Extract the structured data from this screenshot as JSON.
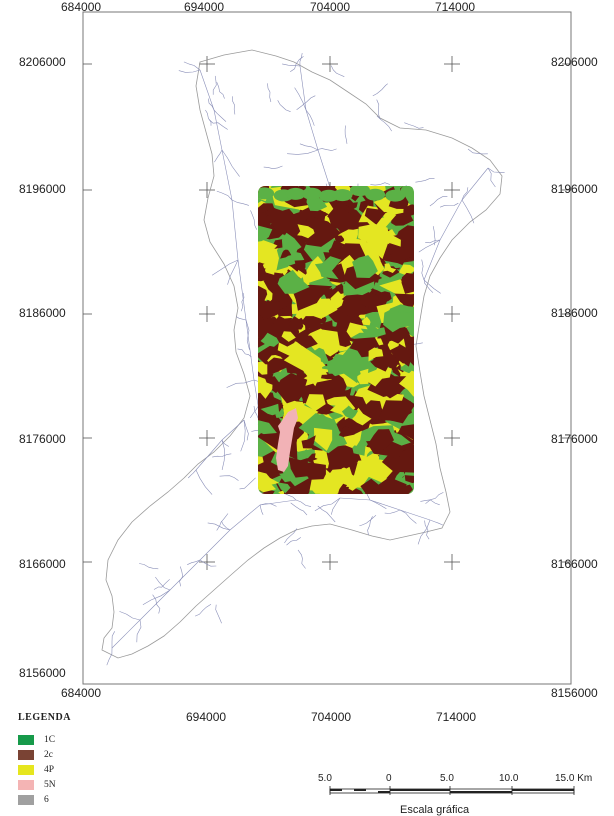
{
  "map": {
    "frame_color": "#777777",
    "x_labels_top": [
      "684000",
      "694000",
      "704000",
      "714000"
    ],
    "x_labels_bottom": [
      "684000",
      "694000",
      "704000",
      "714000"
    ],
    "y_labels_left": [
      "8206000",
      "8196000",
      "8186000",
      "8176000",
      "8166000",
      "8156000"
    ],
    "y_labels_right": [
      "8206000",
      "8196000",
      "8186000",
      "8176000",
      "8166000",
      "8156000"
    ]
  },
  "legend": {
    "title": "LEGENDA",
    "items": [
      {
        "label": "1C",
        "color": "#169a4a"
      },
      {
        "label": "2c",
        "color": "#7a4334"
      },
      {
        "label": "4P",
        "color": "#e6e61e"
      },
      {
        "label": "5N",
        "color": "#f4b4b4"
      },
      {
        "label": "6",
        "color": "#a0a0a0"
      }
    ]
  },
  "colors": {
    "green": "#5bb146",
    "brown": "#651810",
    "yellow": "#e4e622",
    "pink": "#f2b2b6",
    "drainage": "#8a8fb8",
    "boundary": "#9a9a9a"
  },
  "scale": {
    "labels": [
      "5.0",
      "0",
      "5.0",
      "10.0",
      "15.0 Km"
    ],
    "title": "Escala gráfica"
  }
}
